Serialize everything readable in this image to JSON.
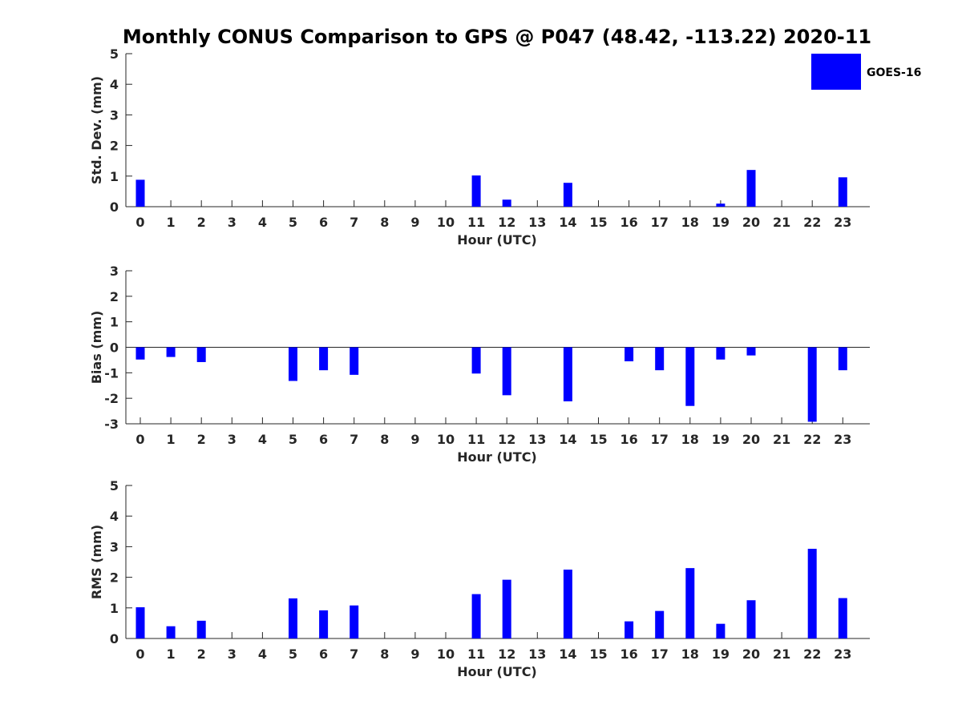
{
  "chart_data": {
    "title": "Monthly CONUS Comparison to GPS @ P047 (48.42, -113.22) 2020-11",
    "legend": {
      "label": "GOES-16",
      "color": "#0000ff",
      "placement": "top-right"
    },
    "hours": [
      0,
      1,
      2,
      3,
      4,
      5,
      6,
      7,
      8,
      9,
      10,
      11,
      12,
      13,
      14,
      15,
      16,
      17,
      18,
      19,
      20,
      21,
      22,
      23
    ],
    "panels": [
      {
        "type": "bar",
        "name": "std-dev",
        "xlabel": "Hour (UTC)",
        "ylabel": "Std. Dev. (mm)",
        "ylim": [
          0,
          5
        ],
        "yticks": [
          0,
          1,
          2,
          3,
          4,
          5
        ],
        "series": [
          {
            "name": "GOES-16",
            "color": "#0000ff",
            "values": [
              0.88,
              null,
              null,
              null,
              null,
              null,
              null,
              null,
              null,
              null,
              null,
              1.02,
              0.23,
              null,
              0.78,
              null,
              null,
              null,
              null,
              0.1,
              1.2,
              null,
              null,
              0.96
            ]
          }
        ]
      },
      {
        "type": "bar",
        "name": "bias",
        "xlabel": "Hour (UTC)",
        "ylabel": "Bias (mm)",
        "ylim": [
          -3,
          3
        ],
        "yticks": [
          -3,
          -2,
          -1,
          0,
          1,
          2,
          3
        ],
        "zero_line": true,
        "series": [
          {
            "name": "GOES-16",
            "color": "#0000ff",
            "values": [
              -0.48,
              -0.38,
              -0.58,
              null,
              null,
              -1.32,
              -0.9,
              -1.08,
              null,
              null,
              null,
              -1.03,
              -1.88,
              null,
              -2.12,
              null,
              -0.55,
              -0.9,
              -2.3,
              -0.48,
              -0.32,
              null,
              -2.92,
              -0.9
            ]
          }
        ]
      },
      {
        "type": "bar",
        "name": "rms",
        "xlabel": "Hour (UTC)",
        "ylabel": "RMS (mm)",
        "ylim": [
          0,
          5
        ],
        "yticks": [
          0,
          1,
          2,
          3,
          4,
          5
        ],
        "series": [
          {
            "name": "GOES-16",
            "color": "#0000ff",
            "values": [
              1.02,
              0.4,
              0.58,
              null,
              null,
              1.31,
              0.92,
              1.08,
              null,
              null,
              null,
              1.45,
              1.92,
              null,
              2.25,
              null,
              0.56,
              0.9,
              2.3,
              0.48,
              1.25,
              null,
              2.93,
              1.32
            ]
          }
        ]
      }
    ]
  }
}
